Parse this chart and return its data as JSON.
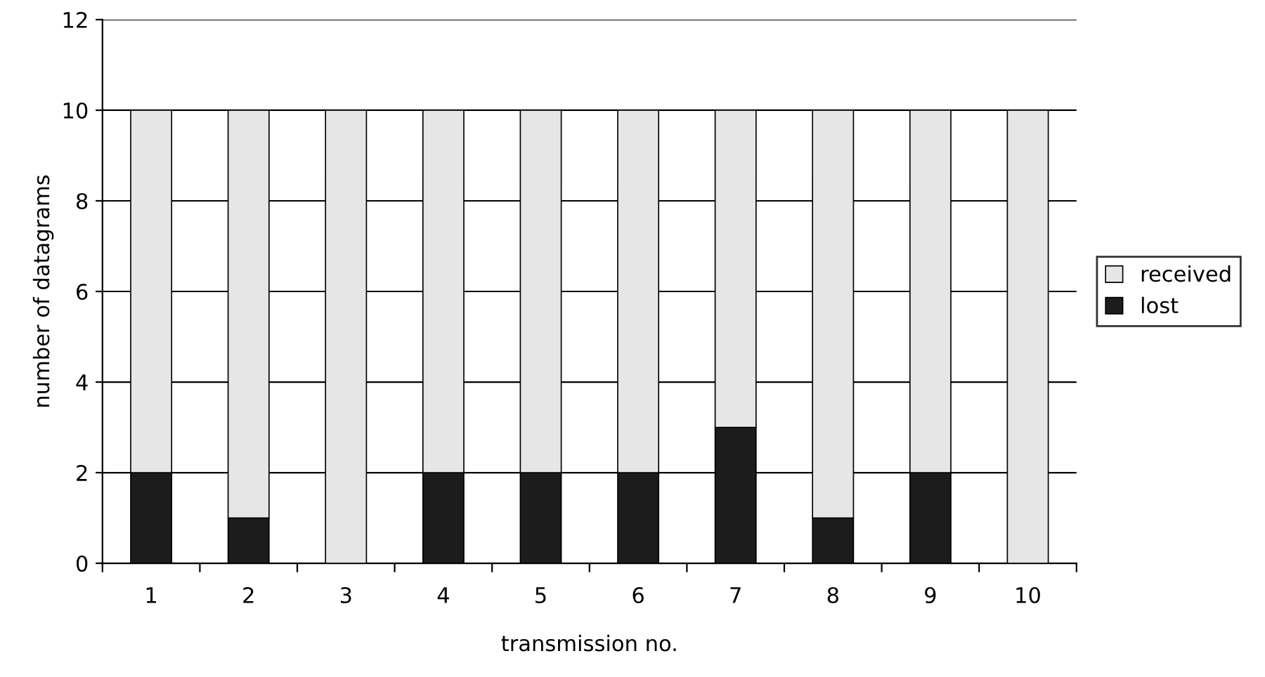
{
  "chart_data": {
    "type": "bar",
    "stacked": true,
    "xlabel": "transmission no.",
    "ylabel": "number of datagrams",
    "categories": [
      "1",
      "2",
      "3",
      "4",
      "5",
      "6",
      "7",
      "8",
      "9",
      "10"
    ],
    "series": [
      {
        "name": "lost",
        "color": "#1c1c1c",
        "values": [
          2,
          1,
          0,
          2,
          2,
          2,
          3,
          1,
          2,
          0
        ]
      },
      {
        "name": "received",
        "color": "#e6e6e6",
        "values": [
          8,
          9,
          10,
          8,
          8,
          8,
          7,
          9,
          8,
          10
        ]
      }
    ],
    "ylim": [
      0,
      12
    ],
    "yticks": [
      0,
      2,
      4,
      6,
      8,
      10,
      12
    ],
    "grid": "y",
    "legend": "right"
  }
}
